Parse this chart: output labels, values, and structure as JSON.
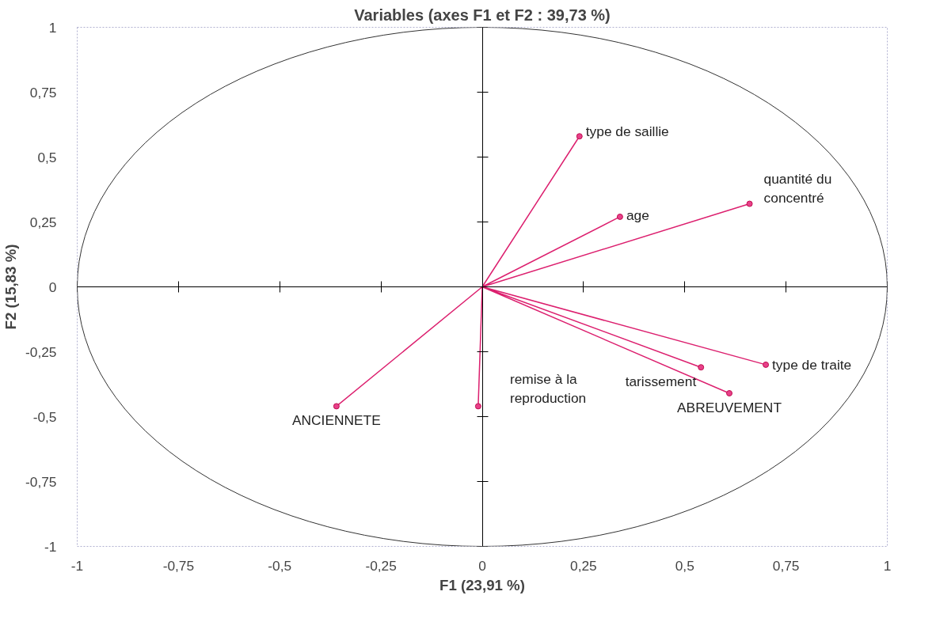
{
  "chart_data": {
    "type": "scatter",
    "title": "Variables (axes F1 et F2 : 39,73 %)",
    "xlabel": "F1 (23,91 %)",
    "ylabel": "F2 (15,83 %)",
    "xlim": [
      -1,
      1
    ],
    "ylim": [
      -1,
      1
    ],
    "xticks": [
      -1,
      {
        "value": -0.75,
        "label": "-0,75"
      },
      {
        "value": -0.5,
        "label": "-0,5"
      },
      {
        "value": -0.25,
        "label": "-0,25"
      },
      0,
      {
        "value": 0.25,
        "label": "0,25"
      },
      {
        "value": 0.5,
        "label": "0,5"
      },
      {
        "value": 0.75,
        "label": "0,75"
      },
      1
    ],
    "yticks": [
      -1,
      {
        "value": -0.75,
        "label": "-0,75"
      },
      {
        "value": -0.5,
        "label": "-0,5"
      },
      {
        "value": -0.25,
        "label": "-0,25"
      },
      0,
      {
        "value": 0.25,
        "label": "0,25"
      },
      {
        "value": 0.5,
        "label": "0,5"
      },
      {
        "value": 0.75,
        "label": "0,75"
      },
      1
    ],
    "series": [
      {
        "type": "line",
        "color": "#dc1f6e",
        "marker": "none",
        "x": [
          0,
          0.24,
          null,
          0,
          0.34,
          null,
          0,
          0.66,
          null,
          0,
          0.7,
          null,
          0,
          0.54,
          null,
          0,
          0.61,
          null,
          0,
          -0.36,
          null,
          0,
          -0.01
        ],
        "values": [
          0,
          0.58,
          null,
          0,
          0.27,
          null,
          0,
          0.32,
          null,
          0,
          -0.3,
          null,
          0,
          -0.31,
          null,
          0,
          -0.41,
          null,
          0,
          -0.46,
          null,
          0,
          -0.46
        ]
      },
      {
        "color": "#e8408a",
        "marker": "circle",
        "x": [
          0.24,
          0.34,
          0.66,
          0.7,
          0.54,
          0.61,
          -0.36,
          -0.01
        ],
        "values": [
          0.58,
          0.27,
          0.32,
          -0.3,
          -0.31,
          -0.41,
          -0.46,
          -0.46
        ]
      }
    ],
    "annotations": [
      {
        "text": "type de saillie",
        "x": 0.24,
        "y": 0.58
      },
      {
        "text": "age",
        "x": 0.34,
        "y": 0.27
      },
      {
        "text": "quantité du concentré",
        "x": 0.66,
        "y": 0.32
      },
      {
        "text": "type de traite",
        "x": 0.7,
        "y": -0.3
      },
      {
        "text": "tarissement",
        "x": 0.54,
        "y": -0.31
      },
      {
        "text": "ABREUVEMENT",
        "x": 0.61,
        "y": -0.41
      },
      {
        "text": "ANCIENNETE",
        "x": -0.36,
        "y": -0.46
      },
      {
        "text": "remise à la reproduction",
        "x": -0.01,
        "y": -0.46
      }
    ]
  }
}
